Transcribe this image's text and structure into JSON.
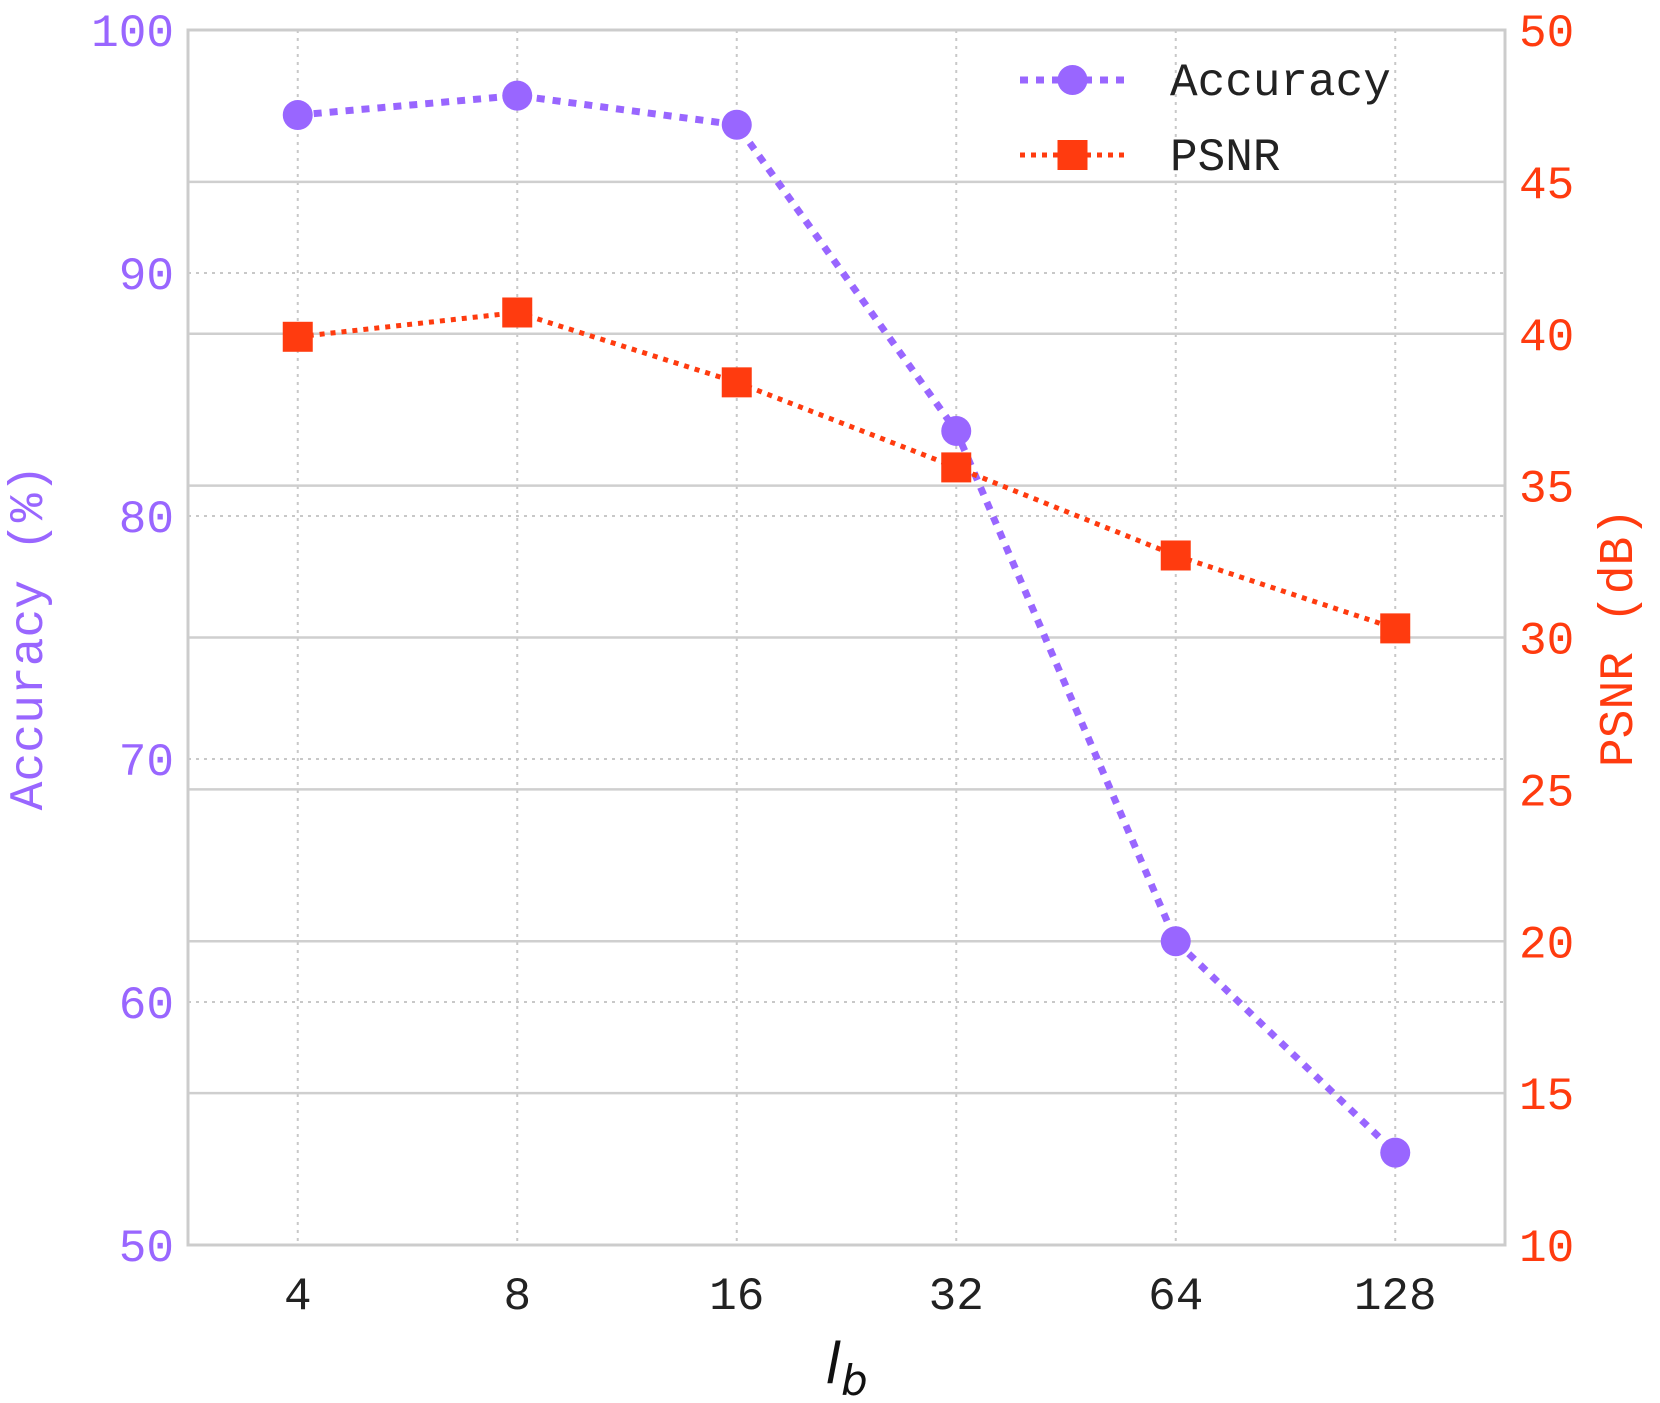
{
  "chart_data": {
    "type": "line",
    "categories": [
      "4",
      "8",
      "16",
      "32",
      "64",
      "128"
    ],
    "xlabel": "l",
    "xlabel_sub": "b",
    "series": [
      {
        "name": "Accuracy",
        "axis": "left",
        "values": [
          96.5,
          97.3,
          96.1,
          83.5,
          62.5,
          53.8
        ],
        "color": "#9966ff",
        "marker": "circle"
      },
      {
        "name": "PSNR",
        "axis": "right",
        "values": [
          39.9,
          40.7,
          38.4,
          35.6,
          32.7,
          30.3
        ],
        "color": "#ff3b0f",
        "marker": "square"
      }
    ],
    "y_left": {
      "label": "Accuracy (%)",
      "ylim": [
        50,
        100
      ],
      "ticks": [
        "50",
        "60",
        "70",
        "80",
        "90",
        "100"
      ],
      "color": "#9966ff"
    },
    "y_right": {
      "label": "PSNR (dB)",
      "ylim": [
        10,
        50
      ],
      "ticks": [
        "10",
        "15",
        "20",
        "25",
        "30",
        "35",
        "40",
        "45",
        "50"
      ],
      "color": "#ff3b0f"
    },
    "grid": true,
    "legend": "top-right"
  }
}
